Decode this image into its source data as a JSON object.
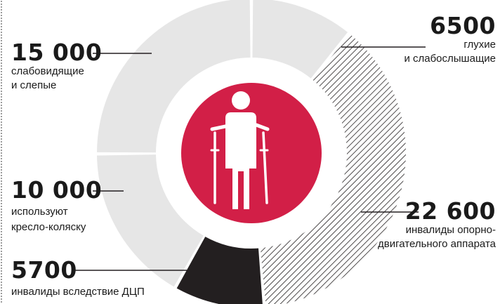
{
  "chart_data": {
    "type": "donut",
    "slices": [
      {
        "value": 6500,
        "value_text": "6500",
        "label_lines": [
          "глухие",
          "и слабослышащие"
        ],
        "fill": "#e6e6e6"
      },
      {
        "value": 22600,
        "value_text": "22 600",
        "label_lines": [
          "инвалиды опорно-",
          "двигательного аппарата"
        ],
        "fill": "hatch"
      },
      {
        "value": 5700,
        "value_text": "5700",
        "label_lines": [
          "инвалиды вследствие ДЦП"
        ],
        "fill": "#231f20"
      },
      {
        "value": 10000,
        "value_text": "10 000",
        "label_lines": [
          "используют",
          "кресло-коляску"
        ],
        "fill": "#e6e6e6"
      },
      {
        "value": 15000,
        "value_text": "15 000",
        "label_lines": [
          "слабовидящие",
          "и слепые"
        ],
        "fill": "#e6e6e6"
      }
    ],
    "center_icon": "person-on-crutches-icon"
  },
  "colors": {
    "center_circle": "#d21f47",
    "segment_light": "#e6e6e6",
    "segment_dark": "#231f20",
    "hatch_line": "#231f20",
    "leader_line": "#231f20"
  }
}
